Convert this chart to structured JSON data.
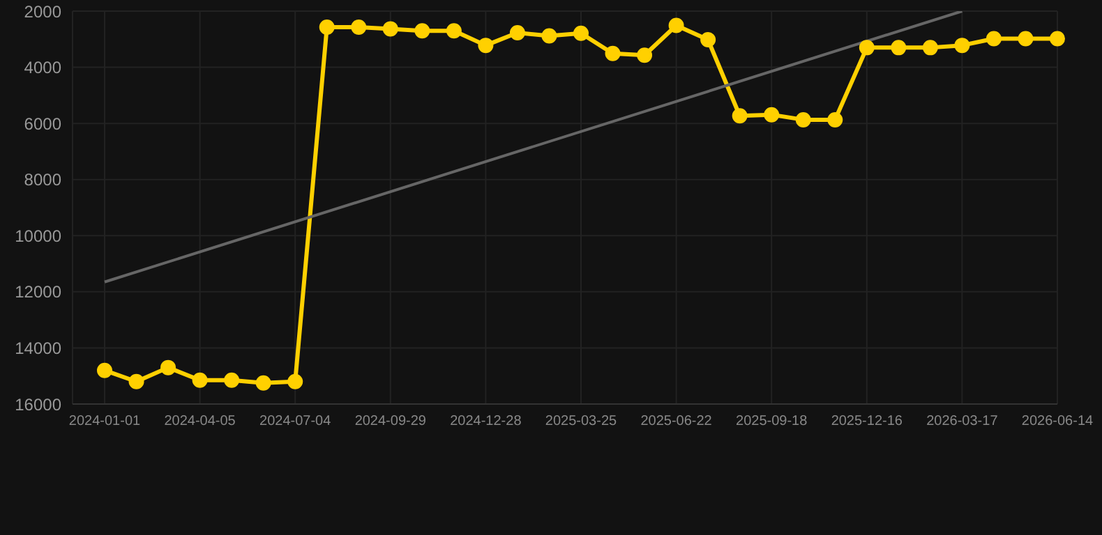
{
  "chart_data": {
    "type": "line",
    "categories": [
      "2024-01-01",
      null,
      null,
      "2024-04-05",
      null,
      null,
      "2024-07-04",
      null,
      null,
      "2024-09-29",
      null,
      null,
      "2024-12-28",
      null,
      null,
      "2025-03-25",
      null,
      null,
      "2025-06-22",
      null,
      null,
      "2025-09-18",
      null,
      null,
      "2025-12-16",
      null,
      null,
      "2026-03-17",
      null,
      null,
      "2026-06-14"
    ],
    "series": [
      {
        "color": "#ffd000",
        "marker": "circle",
        "values": [
          14800,
          15200,
          14700,
          15150,
          15150,
          15250,
          15200,
          2570,
          2570,
          2630,
          2700,
          2700,
          3220,
          2770,
          2880,
          2790,
          3510,
          3570,
          2510,
          3020,
          5730,
          5690,
          5870,
          5870,
          3300,
          3300,
          3300,
          3220,
          2980,
          2980,
          2980
        ]
      },
      {
        "type": "line",
        "color": "#666666",
        "marker": "none",
        "values": [
          11650,
          null,
          null,
          null,
          null,
          null,
          null,
          null,
          null,
          null,
          null,
          null,
          null,
          null,
          null,
          null,
          null,
          null,
          null,
          null,
          null,
          null,
          null,
          null,
          null,
          null,
          null,
          2000,
          null,
          null,
          null
        ]
      }
    ],
    "ylim": [
      16000,
      2000
    ],
    "yticks": [
      2000,
      4000,
      6000,
      8000,
      10000,
      12000,
      14000,
      16000
    ],
    "grid": true,
    "legend": false
  }
}
